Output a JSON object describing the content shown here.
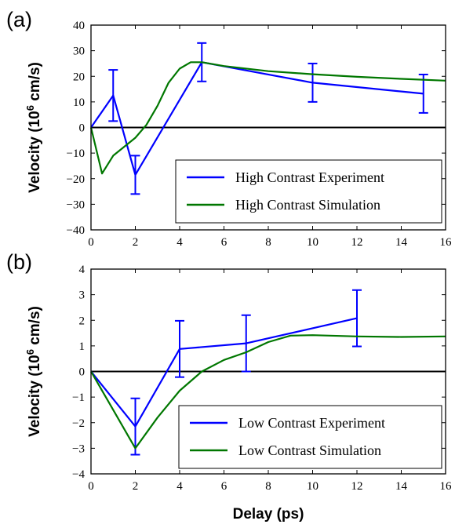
{
  "colors": {
    "experiment": "#0000ff",
    "simulation": "#007700",
    "axis": "#000000",
    "background": "#ffffff"
  },
  "chart_data": [
    {
      "type": "line",
      "panel_label": "(a)",
      "ylabel_main": "Velocity (10",
      "ylabel_sup": "6",
      "ylabel_unit": " cm/s)",
      "xlabel": "",
      "xlim": [
        0,
        16
      ],
      "ylim": [
        -40,
        40
      ],
      "xticks": [
        0,
        2,
        4,
        6,
        8,
        10,
        12,
        14,
        16
      ],
      "yticks": [
        -40,
        -30,
        -20,
        -10,
        0,
        10,
        20,
        30,
        40
      ],
      "legend_position": "bottom-right",
      "series": [
        {
          "name": "High Contrast Experiment",
          "color": "#0000ff",
          "x": [
            0,
            1,
            2,
            5,
            10,
            15
          ],
          "y": [
            0,
            12.5,
            -18.5,
            25.5,
            17.5,
            13.2
          ],
          "err": [
            0,
            10,
            7.5,
            7.5,
            7.5,
            7.5
          ]
        },
        {
          "name": "High Contrast Simulation",
          "color": "#007700",
          "x": [
            0,
            0.5,
            1,
            2,
            2.5,
            3,
            3.5,
            4,
            4.5,
            5,
            6,
            8,
            10,
            12,
            14,
            16
          ],
          "y": [
            0,
            -18,
            -11,
            -4,
            1,
            8.5,
            17.5,
            23,
            25.5,
            25.5,
            24,
            22,
            20.8,
            19.8,
            19,
            18.3
          ]
        }
      ]
    },
    {
      "type": "line",
      "panel_label": "(b)",
      "ylabel_main": "Velocity (10",
      "ylabel_sup": "6",
      "ylabel_unit": " cm/s)",
      "xlabel": "Delay (ps)",
      "xlim": [
        0,
        16
      ],
      "ylim": [
        -4,
        4
      ],
      "xticks": [
        0,
        2,
        4,
        6,
        8,
        10,
        12,
        14,
        16
      ],
      "yticks": [
        -4,
        -3,
        -2,
        -1,
        0,
        1,
        2,
        3,
        4
      ],
      "legend_position": "bottom-right",
      "series": [
        {
          "name": "Low Contrast Experiment",
          "color": "#0000ff",
          "x": [
            0,
            2,
            4,
            7,
            12
          ],
          "y": [
            0,
            -2.15,
            0.88,
            1.1,
            2.08
          ],
          "err": [
            0,
            1.1,
            1.1,
            1.1,
            1.1
          ]
        },
        {
          "name": "Low Contrast Simulation",
          "color": "#007700",
          "x": [
            0,
            1,
            2,
            3,
            4,
            5,
            6,
            7,
            8,
            9,
            10,
            12,
            14,
            16
          ],
          "y": [
            0,
            -1.5,
            -3.0,
            -1.8,
            -0.75,
            0,
            0.45,
            0.75,
            1.15,
            1.4,
            1.42,
            1.37,
            1.35,
            1.37
          ]
        }
      ]
    }
  ]
}
